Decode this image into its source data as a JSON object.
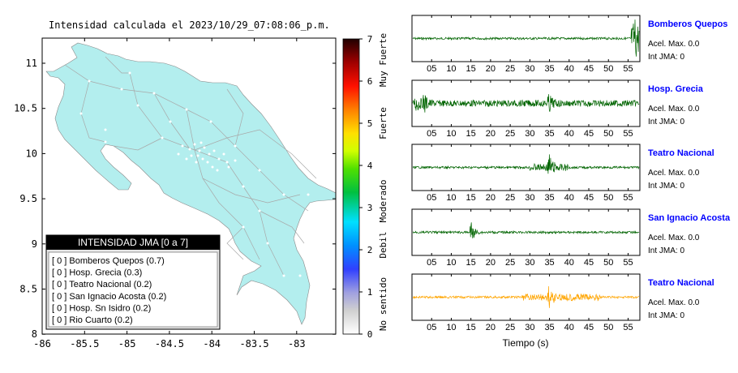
{
  "map": {
    "title": "Intensidad calculada el 2023/10/29_07:08:06_p.m.",
    "x_ticks": [
      "-86",
      "-85.5",
      "-85",
      "-84.5",
      "-84",
      "-83.5",
      "-83"
    ],
    "y_ticks": [
      "11",
      "10.5",
      "10",
      "9.5",
      "9",
      "8.5",
      "8"
    ],
    "land_color": "#b3eeee",
    "legend": {
      "title": "INTENSIDAD JMA [0 a 7]",
      "entries": [
        "[ 0 ]  Bomberos Quepos (0.7)",
        "[ 0 ]  Hosp. Grecia (0.3)",
        "[ 0 ]  Teatro Nacional (0.2)",
        "[ 0 ]  San Ignacio Acosta (0.2)",
        "[ 0 ]  Hosp. Sn Isidro (0.2)",
        "[ 0 ]  Rio Cuarto (0.2)"
      ]
    }
  },
  "colorbar": {
    "ticks": [
      "7",
      "6",
      "5",
      "4",
      "3",
      "2",
      "1",
      "0"
    ],
    "labels": [
      "Muy Fuerte",
      "Fuerte",
      "Moderado",
      "Debil",
      "No sentido"
    ]
  },
  "waveforms": {
    "xlabel": "Tiempo (s)",
    "stations": [
      {
        "name": "Bomberos Quepos",
        "accel": "Acel. Max. 0.0",
        "jma": "Int JMA: 0",
        "color": "#006400",
        "ticks": [
          "05",
          "10",
          "15",
          "20",
          "25",
          "30",
          "35",
          "40",
          "45",
          "50",
          "55"
        ]
      },
      {
        "name": "Hosp. Grecia",
        "accel": "Acel. Max. 0.0",
        "jma": "Int JMA: 0",
        "color": "#006400",
        "ticks": [
          "05",
          "10",
          "15",
          "20",
          "25",
          "30",
          "35",
          "40",
          "45",
          "50",
          "55"
        ]
      },
      {
        "name": "Teatro Nacional",
        "accel": "Acel. Max. 0.0",
        "jma": "Int JMA: 0",
        "color": "#006400",
        "ticks": [
          "05",
          "10",
          "15",
          "20",
          "25",
          "30",
          "35",
          "40",
          "45",
          "50",
          "55"
        ]
      },
      {
        "name": "San Ignacio Acosta",
        "accel": "Acel. Max. 0.0",
        "jma": "Int JMA: 0",
        "color": "#006400",
        "ticks": [
          "05",
          "10",
          "15",
          "20",
          "25",
          "30",
          "35",
          "40",
          "45",
          "50",
          "55"
        ]
      },
      {
        "name": "Teatro Nacional",
        "accel": "Acel. Max. 0.0",
        "jma": "Int JMA: 0",
        "color": "#ffa500",
        "ticks": [
          "05",
          "10",
          "15",
          "20",
          "25",
          "30",
          "35",
          "40",
          "45",
          "50",
          "55"
        ]
      }
    ]
  },
  "chart_data": [
    {
      "type": "scatter",
      "title": "Intensidad calculada el 2023/10/29_07:08:06_p.m.",
      "xlim": [
        -86,
        -82.6
      ],
      "ylim": [
        8,
        11.3
      ],
      "legend": "INTENSIDAD JMA [0 a 7]",
      "stations": [
        {
          "name": "Bomberos Quepos",
          "intensity": 0,
          "value": 0.7
        },
        {
          "name": "Hosp. Grecia",
          "intensity": 0,
          "value": 0.3
        },
        {
          "name": "Teatro Nacional",
          "intensity": 0,
          "value": 0.2
        },
        {
          "name": "San Ignacio Acosta",
          "intensity": 0,
          "value": 0.2
        },
        {
          "name": "Hosp. Sn Isidro",
          "intensity": 0,
          "value": 0.2
        },
        {
          "name": "Rio Cuarto",
          "intensity": 0,
          "value": 0.2
        }
      ]
    },
    {
      "type": "line",
      "xlabel": "Tiempo (s)",
      "xlim": [
        0,
        58
      ],
      "series": [
        {
          "name": "Bomberos Quepos",
          "burst_times": [
            57
          ]
        },
        {
          "name": "Hosp. Grecia",
          "burst_times": [
            1,
            3,
            35
          ]
        },
        {
          "name": "Teatro Nacional",
          "burst_times": [
            35
          ]
        },
        {
          "name": "San Ignacio Acosta",
          "burst_times": [
            15
          ]
        },
        {
          "name": "Teatro Nacional",
          "burst_times": [
            35
          ]
        }
      ]
    }
  ]
}
